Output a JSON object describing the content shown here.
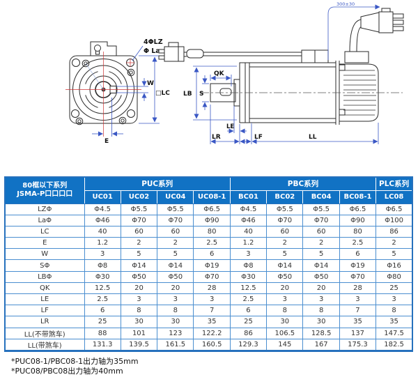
{
  "diagram": {
    "front_view": {
      "label_holes": "4ΦLZ",
      "label_pilot": "Φ La",
      "label_w": "W",
      "label_lc": "□LC",
      "label_e": "E"
    },
    "side_view": {
      "label_qk": "QK",
      "label_s": "S",
      "label_lb": "LB",
      "label_le": "LE",
      "label_lr": "LR",
      "label_lf": "LF",
      "label_ll": "LL",
      "label_cable_length": "300±30"
    },
    "colors": {
      "outline": "#2a2a2a",
      "dimension_blue": "#3a57c4",
      "centerline_red": "#cc3333"
    }
  },
  "table": {
    "corner_header": {
      "line1": "80框以下系列",
      "line2": "JSMA-P口口口口"
    },
    "groups": [
      {
        "label": "PUC系列",
        "span": 4
      },
      {
        "label": "PBC系列",
        "span": 4
      },
      {
        "label": "PLC系列",
        "span": 1
      }
    ],
    "models": [
      "UC01",
      "UC02",
      "UC04",
      "UC08-1",
      "BC01",
      "BC02",
      "BC04",
      "BC08-1",
      "LC08"
    ],
    "rows": [
      {
        "label": "LZΦ",
        "values": [
          "Φ4.5",
          "Φ5.5",
          "Φ5.5",
          "Φ6.5",
          "Φ4.5",
          "Φ5.5",
          "Φ5.5",
          "Φ6.5",
          "Φ6.5"
        ]
      },
      {
        "label": "LaΦ",
        "values": [
          "Φ46",
          "Φ70",
          "Φ70",
          "Φ90",
          "Φ46",
          "Φ70",
          "Φ70",
          "Φ90",
          "Φ100"
        ]
      },
      {
        "label": "LC",
        "values": [
          "40",
          "60",
          "60",
          "80",
          "40",
          "60",
          "60",
          "80",
          "86"
        ]
      },
      {
        "label": "E",
        "values": [
          "1.2",
          "2",
          "2",
          "2.5",
          "1.2",
          "2",
          "2",
          "2.5",
          "2"
        ]
      },
      {
        "label": "W",
        "values": [
          "3",
          "5",
          "5",
          "6",
          "3",
          "5",
          "5",
          "6",
          "5"
        ]
      },
      {
        "label": "SΦ",
        "values": [
          "Φ8",
          "Φ14",
          "Φ14",
          "Φ19",
          "Φ8",
          "Φ14",
          "Φ14",
          "Φ19",
          "Φ16"
        ]
      },
      {
        "label": "LBΦ",
        "values": [
          "Φ30",
          "Φ50",
          "Φ50",
          "Φ70",
          "Φ30",
          "Φ50",
          "Φ50",
          "Φ70",
          "Φ80"
        ]
      },
      {
        "label": "QK",
        "values": [
          "12.5",
          "20",
          "20",
          "28",
          "12.5",
          "20",
          "20",
          "28",
          "25"
        ]
      },
      {
        "label": "LE",
        "values": [
          "2.5",
          "3",
          "3",
          "3",
          "2.5",
          "3",
          "3",
          "3",
          "3"
        ]
      },
      {
        "label": "LF",
        "values": [
          "6",
          "8",
          "8",
          "7",
          "6",
          "8",
          "8",
          "7",
          "8"
        ]
      },
      {
        "label": "LR",
        "values": [
          "25",
          "30",
          "30",
          "35",
          "25",
          "30",
          "30",
          "35",
          "35"
        ]
      },
      {
        "label": "LL(不带煞车)",
        "values": [
          "88",
          "101",
          "123",
          "122.2",
          "86",
          "106.5",
          "128.5",
          "137",
          "147.5"
        ]
      },
      {
        "label": "LL(带煞车)",
        "values": [
          "131.3",
          "139.5",
          "161.5",
          "160.5",
          "129.3",
          "145",
          "167",
          "175.3",
          "182.5"
        ]
      }
    ],
    "header_bg": "#1172c4",
    "grid_color": "#4a8ed0"
  },
  "footnotes": [
    "*PUC08-1/PBC08-1出力轴为35mm",
    "*PUC08/PBC08出力轴为40mm"
  ]
}
